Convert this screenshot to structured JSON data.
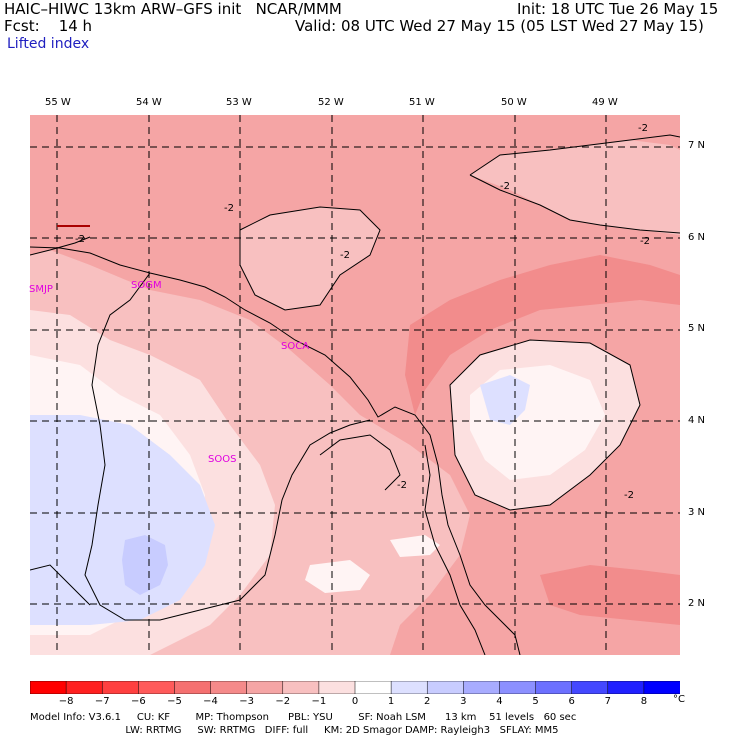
{
  "header": {
    "title": "HAIC–HIWC 13km ARW–GFS init   NCAR/MMM",
    "fcst": "Fcst:    14 h",
    "init": "Init: 18 UTC Tue 26 May 15",
    "valid": "Valid: 08 UTC Wed 27 May 15 (05 LST Wed 27 May 15)",
    "field": "Lifted index"
  },
  "map": {
    "lon_labels": [
      "55 W",
      "54 W",
      "53 W",
      "52 W",
      "51 W",
      "50 W",
      "49 W"
    ],
    "lat_labels": [
      "7 N",
      "6 N",
      "5 N",
      "4 N",
      "3 N",
      "2 N"
    ],
    "stations": [
      "SMJP",
      "SOGM",
      "SOCA",
      "SOOS"
    ],
    "contour_labels": [
      "-2",
      "-2",
      "-2",
      "-2",
      "-2",
      "-2",
      "-2",
      "-2"
    ],
    "colors": {
      "li_m4": "#f28c8c",
      "li_m3": "#f5a5a5",
      "li_m2": "#f8c0c0",
      "li_m1": "#fce0e0",
      "li_0": "#ffffff",
      "li_p1": "#dde0ff",
      "li_p2": "#c8ccff"
    }
  },
  "colorbar": {
    "labels": [
      "−8",
      "−7",
      "−6",
      "−5",
      "−4",
      "−3",
      "−2",
      "−1",
      "0",
      "1",
      "2",
      "3",
      "4",
      "5",
      "6",
      "7",
      "8"
    ],
    "unit": "°C",
    "colors": [
      "#ff0000",
      "#ff2020",
      "#ff4040",
      "#ff5a5a",
      "#f57070",
      "#f58a8a",
      "#f5a5a5",
      "#f8c0c0",
      "#fce0e0",
      "#ffffff",
      "#dde0ff",
      "#c8ccff",
      "#a8acff",
      "#8c90ff",
      "#6c70ff",
      "#4448ff",
      "#2020ff",
      "#0000ff"
    ]
  },
  "footer": {
    "line1": "Model Info: V3.6.1     CU: KF        MP: Thompson      PBL: YSU        SF: Noah LSM      13 km    51 levels   60 sec",
    "line2": "                              LW: RRTMG     SW: RRTMG   DIFF: full     KM: 2D Smagor DAMP: Rayleigh3   SFLAY: MM5"
  }
}
